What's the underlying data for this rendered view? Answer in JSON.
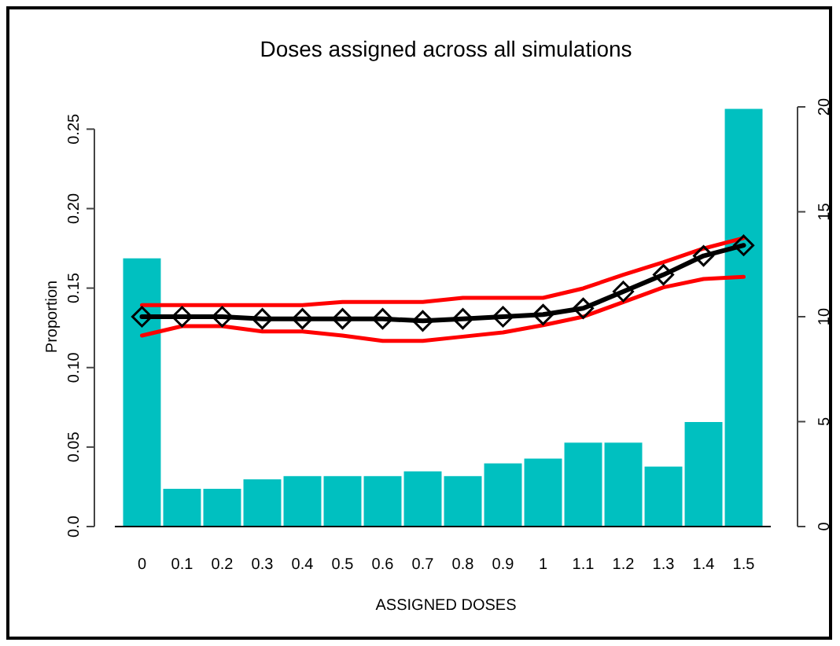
{
  "chart_data": {
    "type": "bar",
    "title": "Doses assigned across all simulations",
    "xlabel": "ASSIGNED DOSES",
    "ylabel": "Proportion",
    "categories": [
      "0",
      "0.1",
      "0.2",
      "0.3",
      "0.4",
      "0.5",
      "0.6",
      "0.7",
      "0.8",
      "0.9",
      "1",
      "1.1",
      "1.2",
      "1.3",
      "1.4",
      "1.5"
    ],
    "ylim": [
      0,
      0.264
    ],
    "yticks": [
      {
        "value": 0,
        "label": "0.0"
      },
      0.05,
      {
        "value": 0.1,
        "label": "0.10"
      },
      0.15,
      {
        "value": 0.2,
        "label": "0.20"
      },
      0.25
    ],
    "y2lim": [
      0,
      20
    ],
    "y2ticks": [
      0,
      5,
      10,
      15,
      20
    ],
    "grid": false,
    "series": [
      {
        "color": "#00c0c0",
        "values": [
          0.169,
          0.024,
          0.024,
          0.03,
          0.032,
          0.032,
          0.032,
          0.035,
          0.032,
          0.04,
          0.043,
          0.053,
          0.053,
          0.038,
          0.066,
          0.263
        ]
      },
      {
        "type": "line",
        "axis": "y2",
        "color": "#ff0000",
        "marker": "none",
        "values": [
          10.55,
          10.55,
          10.55,
          10.55,
          10.55,
          10.7,
          10.7,
          10.7,
          10.9,
          10.9,
          10.9,
          11.35,
          12.0,
          12.6,
          13.25,
          13.75
        ]
      },
      {
        "type": "line",
        "axis": "y2",
        "color": "#ff0000",
        "marker": "none",
        "values": [
          9.1,
          9.55,
          9.55,
          9.3,
          9.3,
          9.1,
          8.85,
          8.85,
          9.05,
          9.25,
          9.6,
          10.0,
          10.7,
          11.4,
          11.8,
          11.9
        ]
      },
      {
        "type": "line",
        "axis": "y2",
        "color": "#000000",
        "marker": "diamond",
        "values": [
          10,
          10,
          10,
          9.9,
          9.9,
          9.9,
          9.9,
          9.8,
          9.9,
          10,
          10.1,
          10.4,
          11.2,
          12,
          12.9,
          13.4
        ]
      }
    ]
  }
}
